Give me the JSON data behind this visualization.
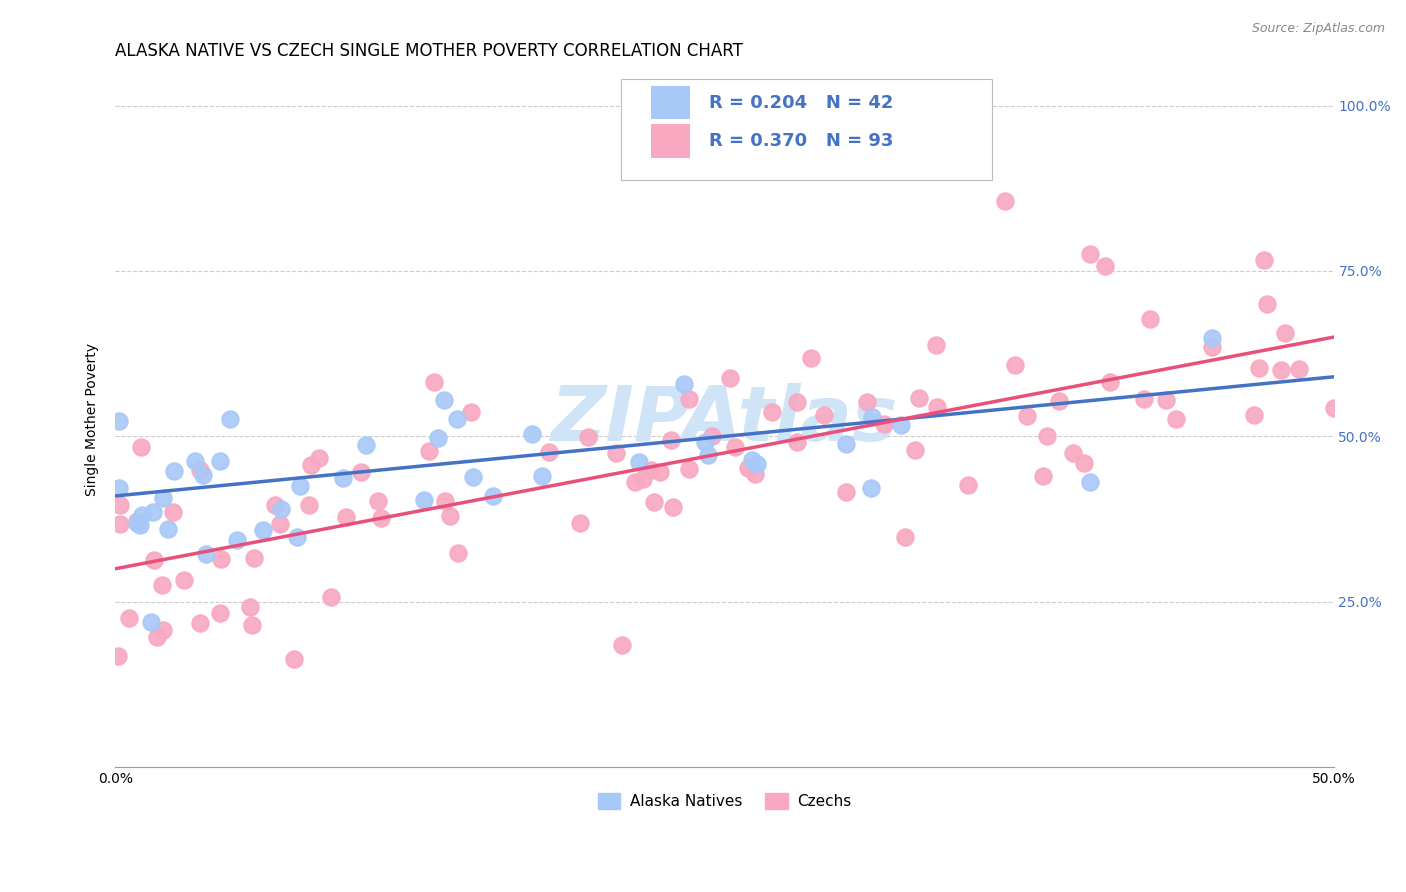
{
  "title": "ALASKA NATIVE VS CZECH SINGLE MOTHER POVERTY CORRELATION CHART",
  "source": "Source: ZipAtlas.com",
  "ylabel": "Single Mother Poverty",
  "xlim": [
    0.0,
    0.5
  ],
  "ylim": [
    0.0,
    1.05
  ],
  "legend_r_alaska": "R = 0.204",
  "legend_n_alaska": "N = 42",
  "legend_r_czech": "R = 0.370",
  "legend_n_czech": "N = 93",
  "alaska_color": "#a8c8f8",
  "czech_color": "#f8a8c0",
  "alaska_line_color": "#4472C4",
  "czech_line_color": "#E8507A",
  "watermark": "ZIPAtlas",
  "watermark_color": "#d0e4f8",
  "background_color": "#ffffff",
  "title_fontsize": 12,
  "axis_label_fontsize": 10,
  "legend_fontsize": 13,
  "tick_fontsize": 10,
  "right_tick_color": "#4472C4",
  "grid_color": "#cccccc",
  "alaska_n": 42,
  "czech_n": 93,
  "alaska_R": 0.204,
  "czech_R": 0.37
}
